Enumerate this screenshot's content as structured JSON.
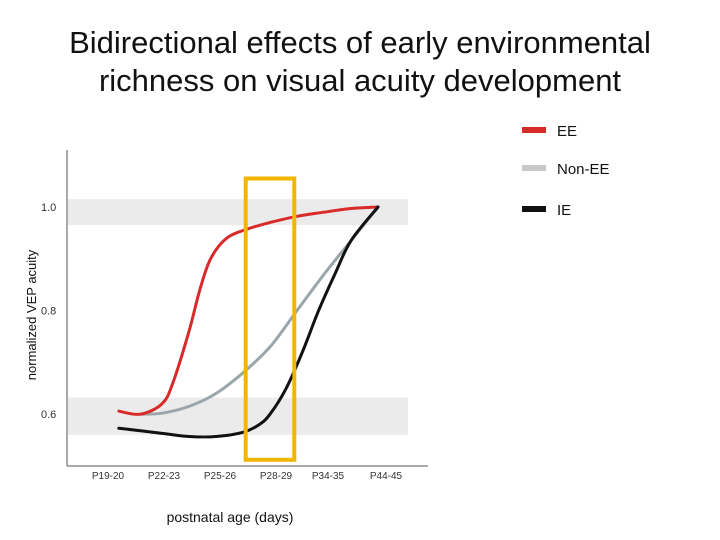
{
  "colors": {
    "ee": "#d92a2a",
    "non_ee": "#9aa6aa",
    "ie": "#111111",
    "highlight_box": "#f2b600",
    "band": "#ebebeb",
    "axis": "#555555",
    "legend_non_ee": "#c8c8c8"
  },
  "chart_data": {
    "type": "line",
    "title_lines": [
      "Bidirectional effects of early environmental",
      "richness on visual acuity development"
    ],
    "xlabel": "postnatal age (days)",
    "ylabel": "normalized VEP acuity",
    "categories": [
      "P19-20",
      "P22-23",
      "P25-26",
      "P28-29",
      "P34-35",
      "P44-45"
    ],
    "yticks": [
      1.0,
      0.8,
      0.6
    ],
    "ytick_labels": [
      "1.0",
      "0.8",
      "0.6"
    ],
    "ylim": [
      0.5,
      1.11
    ],
    "legend_position": "top-right",
    "series": [
      {
        "name": "EE",
        "color_key": "ee",
        "x": [
          0.2,
          0.6,
          1.0,
          1.2,
          1.5,
          1.7,
          1.9,
          2.2,
          2.6,
          3.0,
          3.5,
          4.0,
          4.5,
          5.0
        ],
        "y": [
          0.606,
          0.6,
          0.62,
          0.66,
          0.76,
          0.84,
          0.9,
          0.94,
          0.958,
          0.97,
          0.982,
          0.99,
          0.997,
          1.0
        ]
      },
      {
        "name": "Non-EE",
        "color_key": "non_ee",
        "x": [
          0.6,
          1.0,
          1.5,
          2.0,
          2.5,
          3.0,
          3.5,
          4.0,
          4.5,
          5.0
        ],
        "y": [
          0.6,
          0.602,
          0.615,
          0.64,
          0.68,
          0.73,
          0.8,
          0.87,
          0.935,
          1.0
        ]
      },
      {
        "name": "IE",
        "color_key": "ie",
        "x": [
          0.2,
          1.0,
          1.5,
          2.0,
          2.5,
          2.8,
          3.0,
          3.3,
          3.6,
          3.9,
          4.2,
          4.5,
          5.0
        ],
        "y": [
          0.573,
          0.563,
          0.557,
          0.557,
          0.565,
          0.58,
          0.6,
          0.65,
          0.72,
          0.8,
          0.87,
          0.935,
          1.0
        ]
      }
    ],
    "highlight": {
      "x_from": 2.55,
      "x_to": 3.45,
      "y_from": 0.512,
      "y_to": 1.055
    },
    "bands": [
      {
        "y_from": 0.965,
        "y_to": 1.015
      },
      {
        "y_from": 0.56,
        "y_to": 0.632
      }
    ]
  }
}
